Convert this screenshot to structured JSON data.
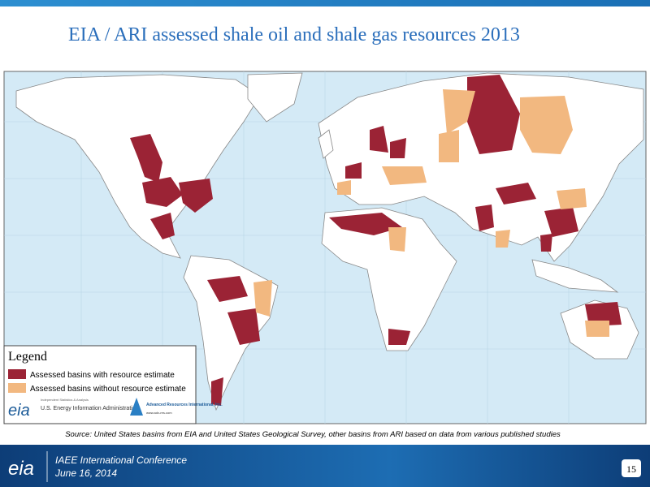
{
  "header": {
    "title": "EIA / ARI assessed shale oil and shale gas resources 2013"
  },
  "legend": {
    "title": "Legend",
    "items": [
      "Assessed basins with resource estimate",
      "Assessed basins without resource estimate"
    ],
    "eia_logo": {
      "mark": "eia",
      "tagline": "Independent Statistics & Analysis",
      "name": "U.S. Energy Information Administration"
    },
    "ari_logo": {
      "name": "Advanced Resources International, Inc.",
      "url": "www.adv-res.com"
    }
  },
  "source": "Source: United States basins from EIA and United States Geological Survey, other basins from ARI based on data from various published studies",
  "footer": {
    "logo": "eia",
    "conference": "IAEE International Conference",
    "date": "June 16, 2014",
    "page": "15"
  }
}
